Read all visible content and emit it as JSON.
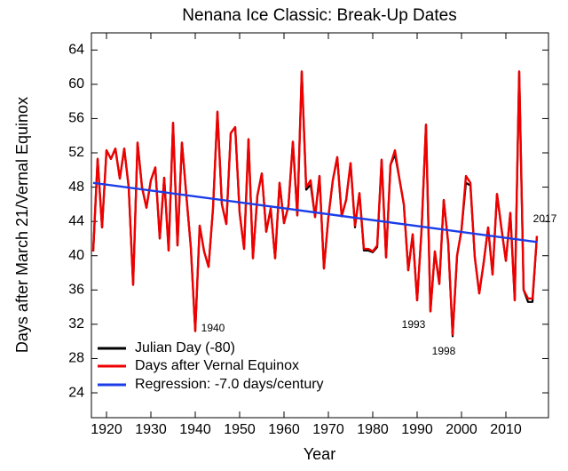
{
  "chart_data": {
    "type": "line",
    "title": "Nenana Ice Classic: Break-Up Dates",
    "x_label": "Year",
    "y_label": "Days after March 21/Vernal Equinox",
    "x": [
      1917,
      1918,
      1919,
      1920,
      1921,
      1922,
      1923,
      1924,
      1925,
      1926,
      1927,
      1928,
      1929,
      1930,
      1931,
      1932,
      1933,
      1934,
      1935,
      1936,
      1937,
      1938,
      1939,
      1940,
      1941,
      1942,
      1943,
      1944,
      1945,
      1946,
      1947,
      1948,
      1949,
      1950,
      1951,
      1952,
      1953,
      1954,
      1955,
      1956,
      1957,
      1958,
      1959,
      1960,
      1961,
      1962,
      1963,
      1964,
      1965,
      1966,
      1967,
      1968,
      1969,
      1970,
      1971,
      1972,
      1973,
      1974,
      1975,
      1976,
      1977,
      1978,
      1979,
      1980,
      1981,
      1982,
      1983,
      1984,
      1985,
      1986,
      1987,
      1988,
      1989,
      1990,
      1991,
      1992,
      1993,
      1994,
      1995,
      1996,
      1997,
      1998,
      1999,
      2000,
      2001,
      2002,
      2003,
      2004,
      2005,
      2006,
      2007,
      2008,
      2009,
      2010,
      2011,
      2012,
      2013,
      2014,
      2015,
      2016,
      2017
    ],
    "series": [
      {
        "name": "Julian Day (-80)",
        "color": "#000000",
        "values": [
          40.5,
          51.3,
          43.3,
          52.3,
          51.3,
          52.5,
          49,
          52.5,
          48,
          36.6,
          53.2,
          48,
          45.6,
          48.8,
          50.3,
          42,
          49.1,
          40.6,
          55.5,
          41.2,
          53.2,
          47,
          41,
          31.2,
          43.5,
          40.5,
          38.7,
          45.5,
          56.8,
          46,
          43.7,
          54.3,
          55,
          45,
          40.8,
          53.6,
          39.7,
          47,
          49.6,
          42.8,
          45.5,
          39.7,
          48.5,
          43.8,
          45.8,
          53.3,
          44.7,
          61.5,
          47.7,
          48.3,
          44.5,
          49.3,
          38.5,
          44.5,
          48.8,
          51.5,
          44.6,
          46.5,
          50.8,
          43.3,
          47.3,
          40.6,
          40.6,
          40.4,
          41,
          51.2,
          39.8,
          50.6,
          51.8,
          49,
          46,
          38.3,
          42.5,
          34.8,
          43,
          55.3,
          33.5,
          40.5,
          36.7,
          46.5,
          41.5,
          30.6,
          40,
          43,
          48.5,
          48.2,
          39.8,
          35.6,
          39.2,
          43.3,
          37.8,
          47.2,
          43.2,
          39.4,
          45,
          34.8,
          61.5,
          36,
          34.6,
          34.6,
          42.3
        ]
      },
      {
        "name": "Days after Vernal Equinox",
        "color": "#ee0000",
        "values": [
          40.5,
          51.3,
          43.3,
          52.3,
          51.3,
          52.5,
          49,
          52.5,
          48,
          36.6,
          53.2,
          48,
          45.6,
          48.8,
          50.3,
          42,
          49.1,
          40.6,
          55.5,
          41.2,
          53.2,
          47,
          41,
          31.2,
          43.5,
          40.5,
          38.7,
          45.5,
          56.8,
          46,
          43.7,
          54.3,
          55,
          45,
          40.8,
          53.6,
          39.7,
          47,
          49.6,
          42.8,
          45.5,
          39.7,
          48.5,
          43.8,
          45.8,
          53.3,
          44.7,
          61.5,
          48,
          48.8,
          44.5,
          49.3,
          38.5,
          44.5,
          48.8,
          51.5,
          44.6,
          46.5,
          50.8,
          43.5,
          47.3,
          40.8,
          40.8,
          40.5,
          41.2,
          51.2,
          39.8,
          50.6,
          52.3,
          49,
          46,
          38.3,
          42.5,
          34.8,
          43,
          55.3,
          33.5,
          40.5,
          36.7,
          46.5,
          41.5,
          30.8,
          40,
          43,
          49.3,
          48.5,
          39.8,
          35.6,
          39.2,
          43.3,
          37.8,
          47.2,
          43.2,
          39.4,
          45,
          34.8,
          61.5,
          36,
          35,
          35,
          42.3
        ]
      },
      {
        "name": "Regression: -7.0 days/century",
        "color": "#1a3de8",
        "x": [
          1917,
          2017
        ],
        "values": [
          48.5,
          41.6
        ]
      }
    ],
    "annotations": [
      "1940",
      "1993",
      "1998",
      "2017"
    ],
    "xlim": [
      1916.6,
      2019.6
    ],
    "ylim": [
      21.1,
      66
    ],
    "xticks": [
      1920,
      1930,
      1940,
      1950,
      1960,
      1970,
      1980,
      1990,
      2000,
      2010
    ],
    "yticks": [
      24,
      28,
      32,
      36,
      40,
      44,
      48,
      52,
      56,
      60,
      64
    ],
    "legend": "lower-left",
    "grid": false
  }
}
